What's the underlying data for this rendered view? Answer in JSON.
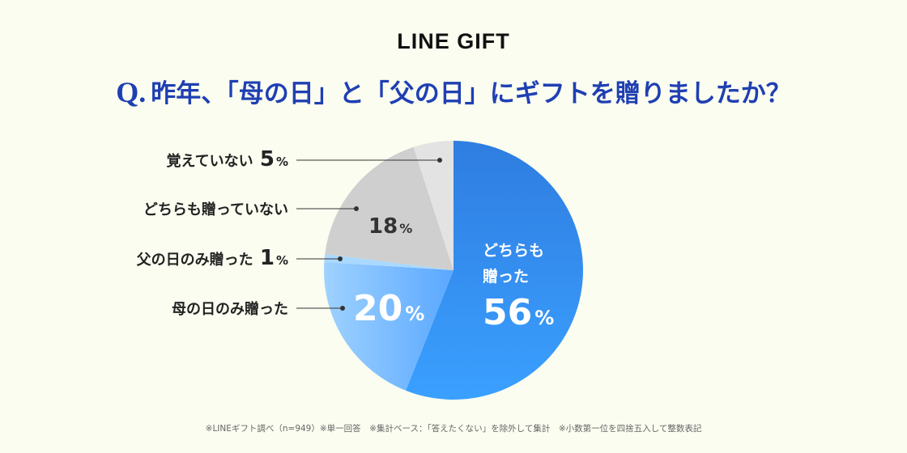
{
  "logo_text": "LINE GIFT",
  "question_prefix": "Q.",
  "question_text": "昨年、「母の日」と「父の日」にギフトを贈りましたか？",
  "footnote": "※LINEギフト調べ（n=949）※単一回答　※集計ベース：「答えたくない」を除外して集計　※小数第一位を四捨五入して整数表記",
  "chart_data": {
    "type": "pie",
    "title": "昨年、「母の日」と「父の日」にギフトを贈りましたか？",
    "slices": [
      {
        "label": "どちらも贈った",
        "label_lines": [
          "どちらも",
          "贈った"
        ],
        "value": 56,
        "value_text": "56",
        "pct": "%",
        "color_from": "#2f7de0",
        "color_to": "#3aa0ff"
      },
      {
        "label": "母の日のみ贈った",
        "value": 20,
        "value_text": "20",
        "pct": "%",
        "color_from": "#5aa8ff",
        "color_to": "#9fd2ff"
      },
      {
        "label": "父の日のみ贈った",
        "value": 1,
        "value_text": "1",
        "pct": "%",
        "color_from": "#a9d9ff",
        "color_to": "#a9d9ff"
      },
      {
        "label": "どちらも贈っていない",
        "value": 18,
        "value_text": "18",
        "pct": "%",
        "color_from": "#cfcfcf",
        "color_to": "#cfcfcf"
      },
      {
        "label": "覚えていない",
        "value": 5,
        "value_text": "5",
        "pct": "%",
        "color_from": "#e3e3e3",
        "color_to": "#e3e3e3"
      }
    ]
  }
}
